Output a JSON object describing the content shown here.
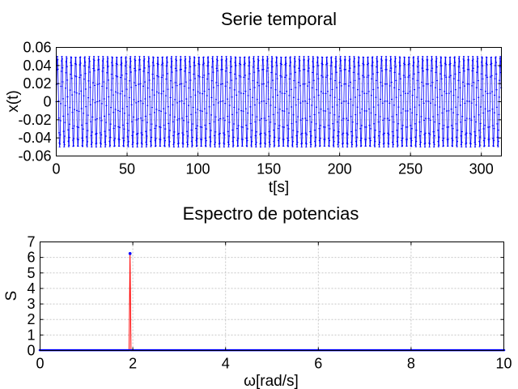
{
  "chart_data": [
    {
      "type": "line",
      "title": "Serie temporal",
      "xlabel": "t[s]",
      "ylabel": "x(t)",
      "xlim": [
        0,
        314.16
      ],
      "ylim": [
        -0.06,
        0.06
      ],
      "xticks": [
        0,
        50,
        100,
        150,
        200,
        250,
        300
      ],
      "yticks": [
        -0.06,
        -0.04,
        -0.02,
        0,
        0.02,
        0.04,
        0.06
      ],
      "xtick_labels": [
        "0",
        "50",
        "100",
        "150",
        "200",
        "250",
        "300"
      ],
      "ytick_labels": [
        "-0.06",
        "-0.04",
        "-0.02",
        "0",
        "0.02",
        "0.04",
        "0.06"
      ],
      "grid": true,
      "series": [
        {
          "amplitude": 0.05,
          "angular_frequency": 1.95,
          "t_max": 314.16,
          "color": "#0000ff",
          "marker": "dot"
        }
      ]
    },
    {
      "type": "line",
      "title": "Espectro de potencias",
      "xlabel": "ω[rad/s]",
      "ylabel": "S",
      "xlim": [
        0,
        10
      ],
      "ylim": [
        0,
        7
      ],
      "xticks": [
        0,
        2,
        4,
        6,
        8,
        10
      ],
      "yticks": [
        0,
        1,
        2,
        3,
        4,
        5,
        6,
        7
      ],
      "xtick_labels": [
        "0",
        "2",
        "4",
        "6",
        "8",
        "10"
      ],
      "ytick_labels": [
        "0",
        "1",
        "2",
        "3",
        "4",
        "5",
        "6",
        "7"
      ],
      "grid": true,
      "series": [
        {
          "omega_step": 0.02,
          "peak_omega": 1.94,
          "peak_value": 6.25,
          "baseline": 0.02,
          "line_color": "#ff0000",
          "marker_color": "#0000ff"
        }
      ]
    }
  ]
}
